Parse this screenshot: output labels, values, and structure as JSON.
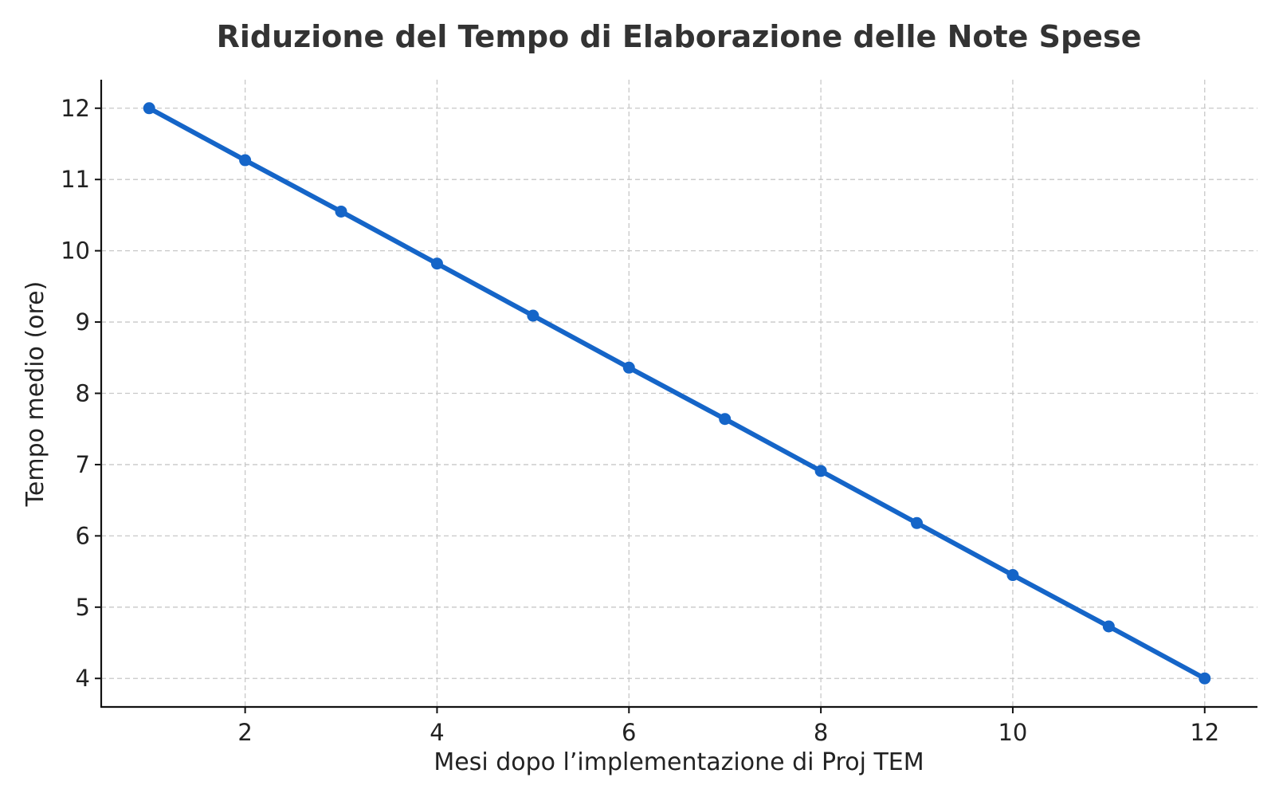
{
  "chart_data": {
    "type": "line",
    "title": "Riduzione del Tempo di Elaborazione delle Note Spese",
    "xlabel": "Mesi dopo l’implementazione di Proj TEM",
    "ylabel": "Tempo medio (ore)",
    "x": [
      1,
      2,
      3,
      4,
      5,
      6,
      7,
      8,
      9,
      10,
      11,
      12
    ],
    "series": [
      {
        "values": [
          12.0,
          11.27,
          10.55,
          9.82,
          9.09,
          8.36,
          7.64,
          6.91,
          6.18,
          5.45,
          4.73,
          4.0
        ],
        "color": "#1565c8",
        "marker": "circle"
      }
    ],
    "xlim": [
      0.5,
      12.55
    ],
    "ylim": [
      3.6,
      12.4
    ],
    "xticks": [
      2,
      4,
      6,
      8,
      10,
      12
    ],
    "xtick_labels": [
      "2",
      "4",
      "6",
      "8",
      "10",
      "12"
    ],
    "yticks": [
      4,
      5,
      6,
      7,
      8,
      9,
      10,
      11,
      12
    ],
    "ytick_labels": [
      "4",
      "5",
      "6",
      "7",
      "8",
      "9",
      "10",
      "11",
      "12"
    ],
    "grid": true,
    "legend": "none"
  }
}
